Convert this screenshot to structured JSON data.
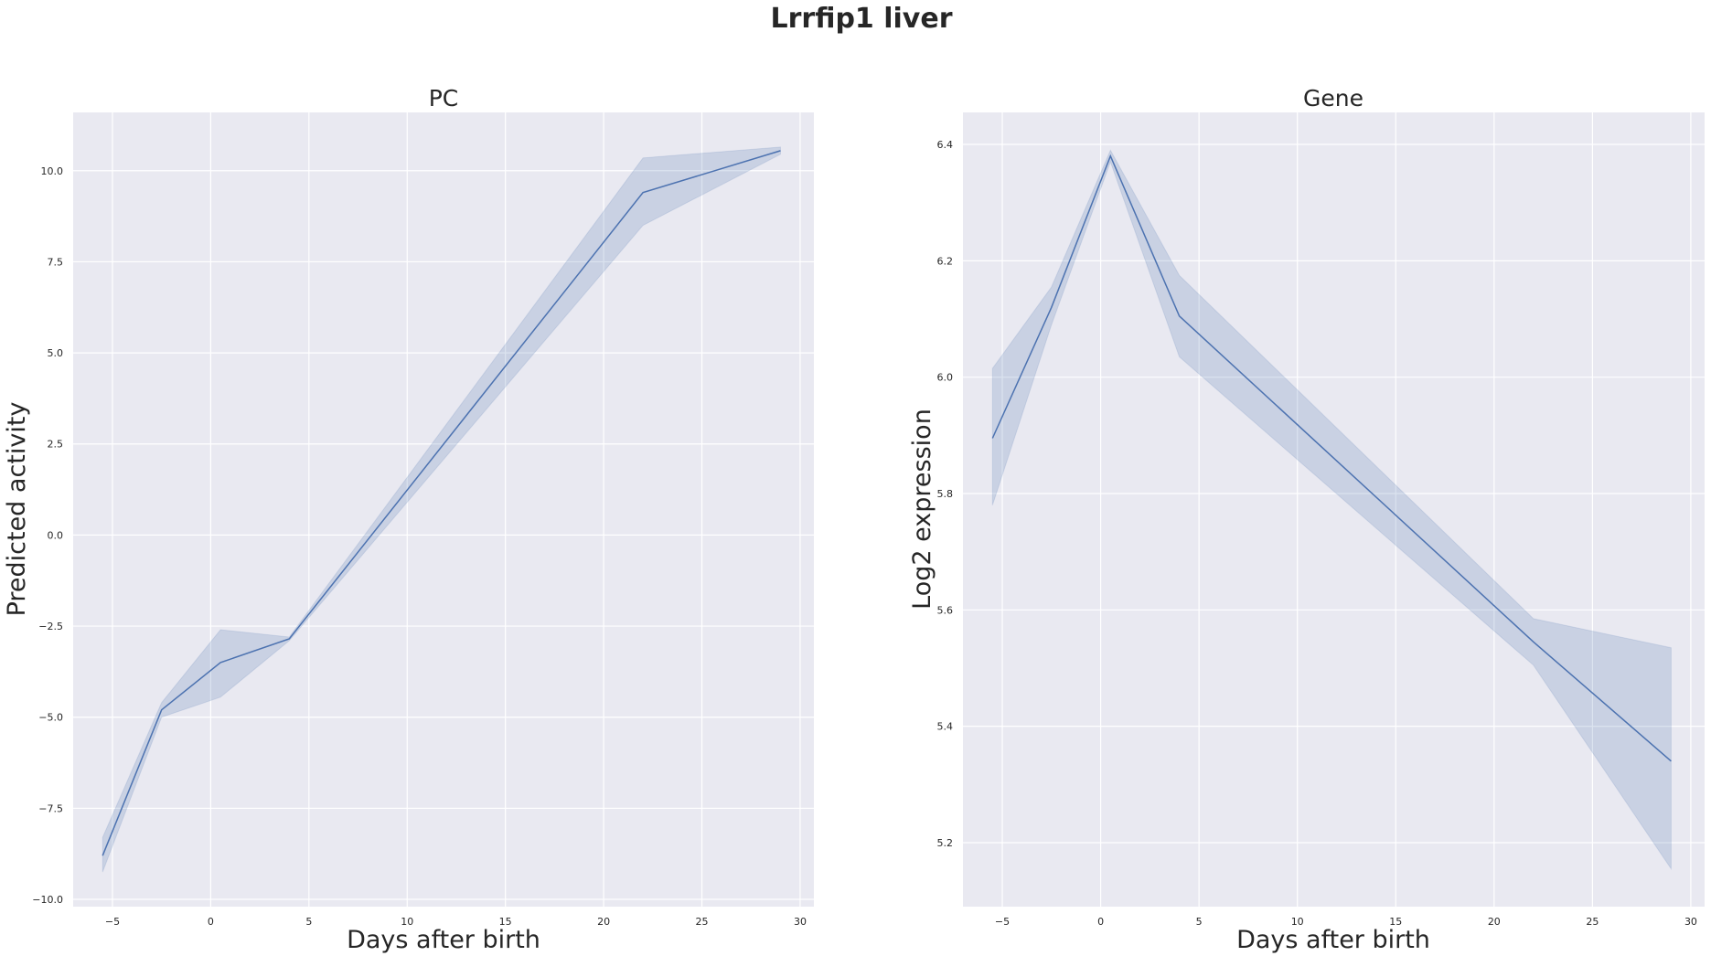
{
  "figure": {
    "title": "Lrrfip1 liver"
  },
  "colors": {
    "plot_background": "#e9e9f1",
    "grid": "#ffffff",
    "series": "#4c72b0",
    "text": "#262626"
  },
  "chart_data": [
    {
      "type": "line",
      "title": "PC",
      "xlabel": "Days after birth",
      "ylabel": "Predicted activity",
      "xlim": [
        -7,
        30.7
      ],
      "ylim": [
        -10.2,
        11.6
      ],
      "xticks": [
        -5,
        0,
        5,
        10,
        15,
        20,
        25,
        30
      ],
      "xtick_labels": [
        "−5",
        "0",
        "5",
        "10",
        "15",
        "20",
        "25",
        "30"
      ],
      "yticks": [
        -10,
        -7.5,
        -5,
        -2.5,
        0,
        2.5,
        5,
        7.5,
        10
      ],
      "ytick_labels": [
        "−10.0",
        "−7.5",
        "−5.0",
        "−2.5",
        "0.0",
        "2.5",
        "5.0",
        "7.5",
        "10.0"
      ],
      "grid": true,
      "series": [
        {
          "x": [
            -5.5,
            -2.5,
            0.5,
            4,
            22,
            29
          ],
          "y": [
            -8.8,
            -4.8,
            -3.5,
            -2.85,
            9.4,
            10.55
          ],
          "ci_low": [
            -9.25,
            -5.0,
            -4.45,
            -2.9,
            8.5,
            10.45
          ],
          "ci_high": [
            -8.3,
            -4.6,
            -2.6,
            -2.8,
            10.35,
            10.65
          ]
        }
      ]
    },
    {
      "type": "line",
      "title": "Gene",
      "xlabel": "Days after birth",
      "ylabel": "Log2 expression",
      "xlim": [
        -7,
        30.7
      ],
      "ylim": [
        5.09,
        6.455
      ],
      "xticks": [
        -5,
        0,
        5,
        10,
        15,
        20,
        25,
        30
      ],
      "xtick_labels": [
        "−5",
        "0",
        "5",
        "10",
        "15",
        "20",
        "25",
        "30"
      ],
      "yticks": [
        5.2,
        5.4,
        5.6,
        5.8,
        6.0,
        6.2,
        6.4
      ],
      "ytick_labels": [
        "5.2",
        "5.4",
        "5.6",
        "5.8",
        "6.0",
        "6.2",
        "6.4"
      ],
      "grid": true,
      "series": [
        {
          "x": [
            -5.5,
            -2.5,
            0.5,
            4,
            22,
            29
          ],
          "y": [
            5.895,
            6.12,
            6.38,
            6.105,
            5.545,
            5.34
          ],
          "ci_low": [
            5.78,
            6.09,
            6.37,
            6.035,
            5.505,
            5.155
          ],
          "ci_high": [
            6.015,
            6.155,
            6.39,
            6.175,
            5.585,
            5.535
          ]
        }
      ]
    }
  ]
}
